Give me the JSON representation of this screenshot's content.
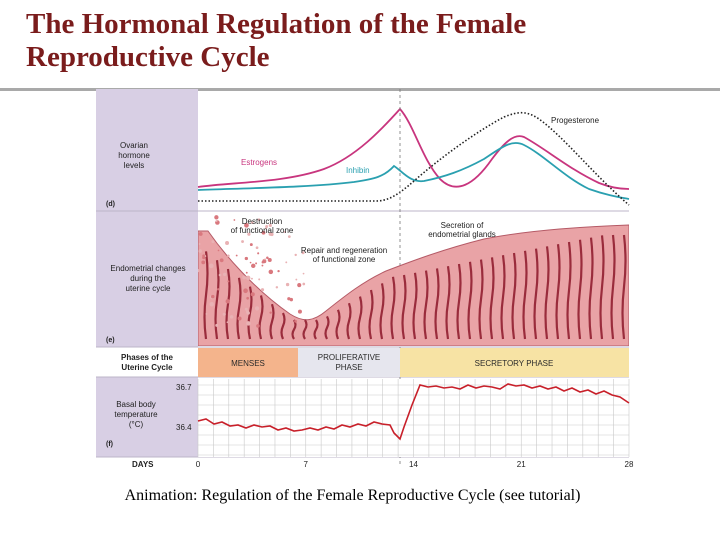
{
  "slide": {
    "title": "The Hormonal Regulation of the Female Reproductive Cycle",
    "caption": "Animation: Regulation of the Female Reproductive Cycle (see tutorial)"
  },
  "figure": {
    "hormone_panel": {
      "row_label_1": "Ovarian",
      "row_label_2": "hormone",
      "row_label_3": "levels",
      "tag": "(d)",
      "estrogens_label": "Estrogens",
      "inhibin_label": "Inhibin",
      "progesterone_label": "Progesterone",
      "colors": {
        "estrogens": "#c8357e",
        "inhibin": "#2aa0b0",
        "progesterone": "#222222"
      }
    },
    "endometrium_panel": {
      "row_label_1": "Endometrial changes",
      "row_label_2": "during the",
      "row_label_3": "uterine cycle",
      "tag": "(e)",
      "destruction_1": "Destruction",
      "destruction_2": "of functional zone",
      "repair_1": "Repair and regeneration",
      "repair_2": "of functional zone",
      "secretion_1": "Secretion of",
      "secretion_2": "endometrial glands"
    },
    "phases_panel": {
      "row_label_1": "Phases of the",
      "row_label_2": "Uterine Cycle",
      "menses": "MENSES",
      "proliferative_1": "PROLIFERATIVE",
      "proliferative_2": "PHASE",
      "secretory": "SECRETORY PHASE",
      "colors": {
        "menses": "#f4b48c",
        "proliferative": "#e6e6ee",
        "secretory": "#f7e3a4"
      }
    },
    "temperature_panel": {
      "row_label_1": "Basal body",
      "row_label_2": "temperature",
      "row_label_3": "(°C)",
      "tag": "(f)",
      "y_high": "36.7",
      "y_low": "36.4",
      "line_color": "#c8202a"
    },
    "days_axis": {
      "label": "DAYS",
      "ticks": [
        "0",
        "7",
        "14",
        "21",
        "28"
      ]
    },
    "side_colors": {
      "label_column": "#d8cfe4",
      "endometrium": "#e9a3a6",
      "gland": "#9a2c3c"
    }
  }
}
